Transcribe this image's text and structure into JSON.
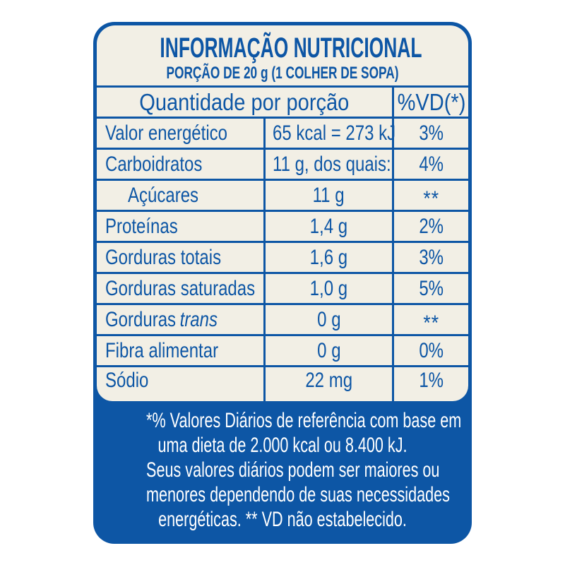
{
  "colors": {
    "blue": "#0d56a5",
    "cream": "#f2efe5",
    "text_white": "#ffffff"
  },
  "header": {
    "title": "INFORMAÇÃO NUTRICIONAL",
    "subtitle": "PORÇÃO DE 20 g (1 COLHER DE SOPA)"
  },
  "table": {
    "columns": {
      "quantity_header": "Quantidade por porção",
      "dv_header": "%VD(*)"
    },
    "rows": [
      {
        "name": "Valor energético",
        "amount": "65 kcal = 273 kJ",
        "dv": "3%"
      },
      {
        "name": "Carboidratos",
        "amount": "11 g, dos quais:",
        "dv": "4%"
      },
      {
        "name": "Açúcares",
        "amount": "11 g",
        "dv": "**"
      },
      {
        "name": "Proteínas",
        "amount": "1,4 g",
        "dv": "2%"
      },
      {
        "name": "Gorduras totais",
        "amount": "1,6 g",
        "dv": "3%"
      },
      {
        "name": "Gorduras saturadas",
        "amount": "1,0 g",
        "dv": "5%"
      },
      {
        "name": "Gorduras",
        "name_italic": "trans",
        "amount": "0 g",
        "dv": "**"
      },
      {
        "name": "Fibra alimentar",
        "amount": "0 g",
        "dv": "0%"
      },
      {
        "name": "Sódio",
        "amount": "22 mg",
        "dv": "1%"
      }
    ]
  },
  "footnote": {
    "lines": [
      "*% Valores Diários de referência com base em",
      "uma dieta de 2.000 kcal ou 8.400 kJ.",
      "Seus valores diários podem ser maiores ou",
      "menores dependendo de suas necessidades",
      "energéticas. ** VD não estabelecido."
    ]
  }
}
